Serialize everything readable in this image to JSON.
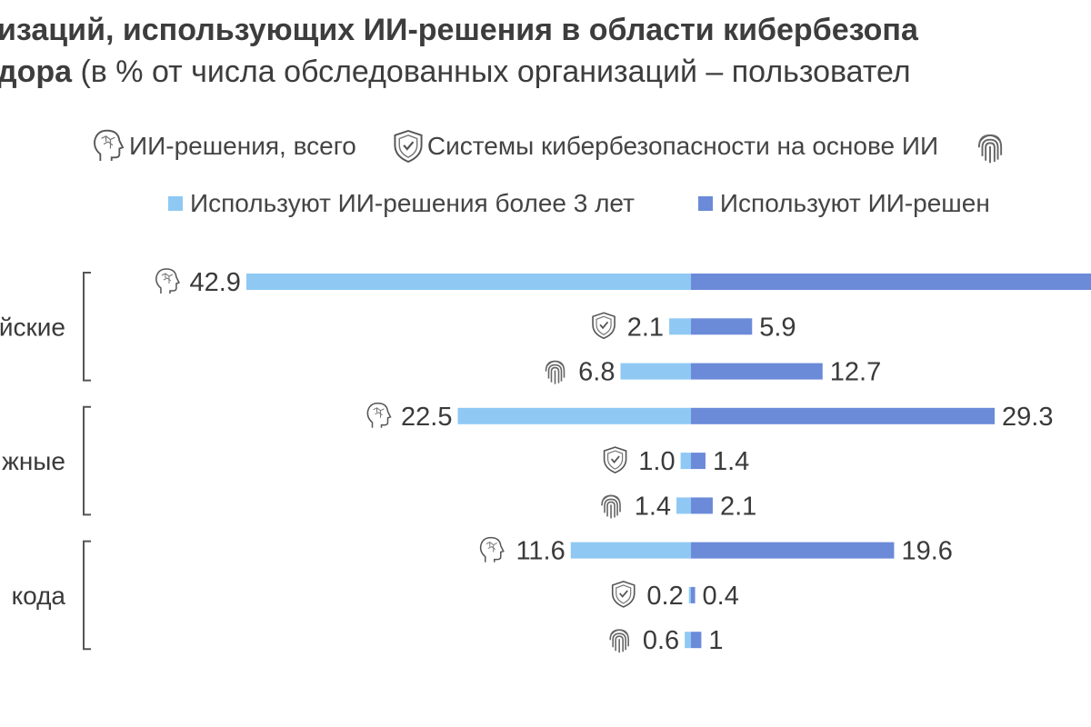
{
  "title": {
    "line1": "изаций, использующих ИИ-решения в области кибербезопа",
    "line2_bold": "дора",
    "line2_rest": " (в % от числа обследованных организаций – пользовател"
  },
  "legend": {
    "types": [
      {
        "icon": "brain-icon",
        "label": "ИИ-решения, всего"
      },
      {
        "icon": "shield-icon",
        "label": "Системы кибербезопасности на основе ИИ"
      },
      {
        "icon": "fingerprint-icon",
        "label": ""
      }
    ],
    "series": [
      {
        "label": "Используют ИИ-решения более 3 лет",
        "color": "#8fc9f3"
      },
      {
        "label": "Используют ИИ-решен",
        "color": "#6b8ad8"
      }
    ]
  },
  "chart_data": {
    "type": "bar",
    "orientation": "horizontal-diverging",
    "groups": [
      {
        "label": "йские",
        "rows": [
          {
            "icon": "brain-icon",
            "left": 42.9,
            "right": null,
            "left_label": "42.9",
            "right_label": ""
          },
          {
            "icon": "shield-icon",
            "left": 2.1,
            "right": 5.9,
            "left_label": "2.1",
            "right_label": "5.9"
          },
          {
            "icon": "fingerprint-icon",
            "left": 6.8,
            "right": 12.7,
            "left_label": "6.8",
            "right_label": "12.7"
          }
        ]
      },
      {
        "label": "жные",
        "rows": [
          {
            "icon": "brain-icon",
            "left": 22.5,
            "right": 29.3,
            "left_label": "22.5",
            "right_label": "29.3"
          },
          {
            "icon": "shield-icon",
            "left": 1.0,
            "right": 1.4,
            "left_label": "1.0",
            "right_label": "1.4"
          },
          {
            "icon": "fingerprint-icon",
            "left": 1.4,
            "right": 2.1,
            "left_label": "1.4",
            "right_label": "2.1"
          }
        ]
      },
      {
        "label": "кода",
        "rows": [
          {
            "icon": "brain-icon",
            "left": 11.6,
            "right": 19.6,
            "left_label": "11.6",
            "right_label": "19.6"
          },
          {
            "icon": "shield-icon",
            "left": 0.2,
            "right": 0.4,
            "left_label": "0.2",
            "right_label": "0.4"
          },
          {
            "icon": "fingerprint-icon",
            "left": 0.6,
            "right": 1,
            "left_label": "0.6",
            "right_label": "1"
          }
        ]
      }
    ],
    "colors": {
      "left": "#8fc9f3",
      "right": "#6b8ad8"
    }
  }
}
